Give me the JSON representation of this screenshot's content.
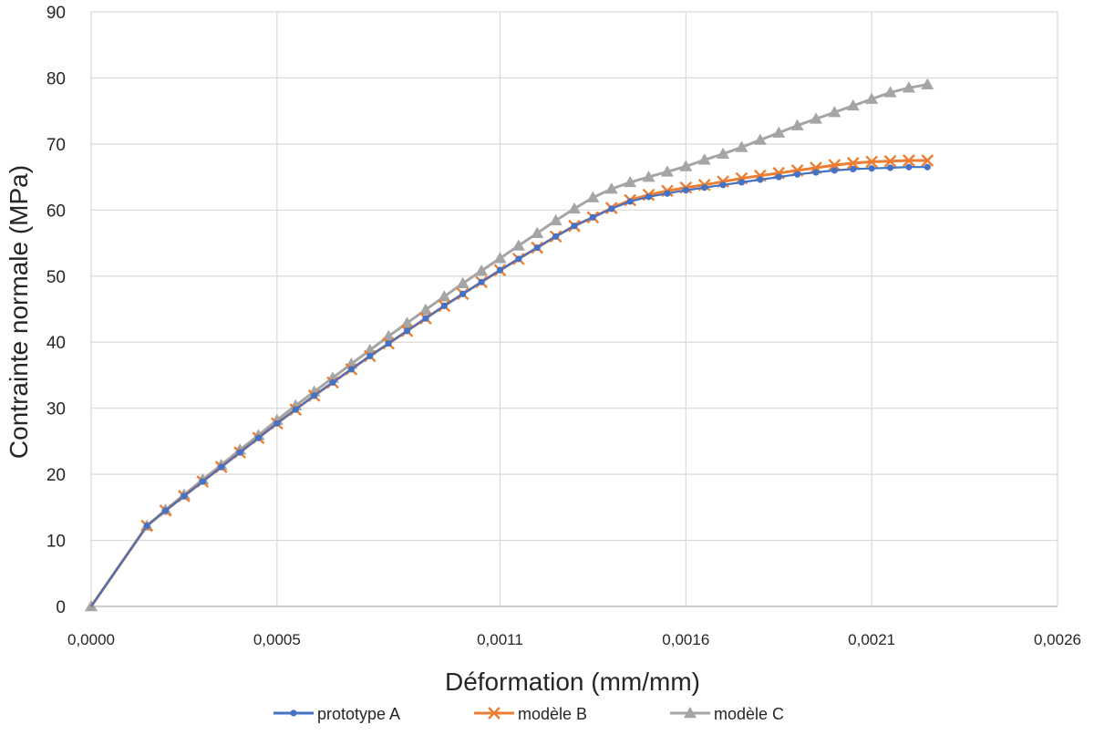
{
  "chart_data": {
    "type": "line",
    "title": "",
    "xlabel": "Déformation (mm/mm)",
    "ylabel": "Contrainte normale (MPa)",
    "xlim": [
      0,
      0.0026
    ],
    "ylim": [
      0,
      90
    ],
    "x_ticks": [
      0,
      0.0005,
      0.0011,
      0.0016,
      0.0021,
      0.0026
    ],
    "x_tick_labels": [
      "0,0000",
      "0,0005",
      "0,0011",
      "0,0016",
      "0,0021",
      "0,0026"
    ],
    "y_ticks": [
      0,
      10,
      20,
      30,
      40,
      50,
      60,
      70,
      80,
      90
    ],
    "y_tick_labels": [
      "0",
      "10",
      "20",
      "30",
      "40",
      "50",
      "60",
      "70",
      "80",
      "90"
    ],
    "grid": true,
    "legend_position": "bottom",
    "x": [
      0,
      0.00015,
      0.0002,
      0.00025,
      0.0003,
      0.00035,
      0.0004,
      0.00045,
      0.0005,
      0.00055,
      0.0006,
      0.00065,
      0.0007,
      0.00075,
      0.0008,
      0.00085,
      0.0009,
      0.00095,
      0.001,
      0.00105,
      0.0011,
      0.00115,
      0.0012,
      0.00125,
      0.0013,
      0.00135,
      0.0014,
      0.00145,
      0.0015,
      0.00155,
      0.0016,
      0.00165,
      0.0017,
      0.00175,
      0.0018,
      0.00185,
      0.0019,
      0.00195,
      0.002,
      0.00205,
      0.0021,
      0.00215,
      0.0022,
      0.00225
    ],
    "series": [
      {
        "name": "prototype A",
        "color": "#4472C4",
        "marker": "circle",
        "values": [
          0,
          12.2,
          14.5,
          16.7,
          18.9,
          21.1,
          23.3,
          25.5,
          27.7,
          29.8,
          31.9,
          33.9,
          35.9,
          37.9,
          39.8,
          41.7,
          43.6,
          45.5,
          47.3,
          49.1,
          50.9,
          52.6,
          54.3,
          56.0,
          57.6,
          58.9,
          60.2,
          61.3,
          62.0,
          62.5,
          63.0,
          63.4,
          63.8,
          64.2,
          64.6,
          65.0,
          65.4,
          65.7,
          66.0,
          66.2,
          66.3,
          66.4,
          66.5,
          66.5
        ]
      },
      {
        "name": "modèle B",
        "color": "#ED7D31",
        "marker": "x",
        "values": [
          0,
          12.2,
          14.5,
          16.7,
          18.9,
          21.1,
          23.3,
          25.5,
          27.7,
          29.8,
          31.9,
          33.9,
          35.9,
          37.9,
          39.8,
          41.7,
          43.6,
          45.5,
          47.3,
          49.1,
          50.9,
          52.6,
          54.3,
          56.0,
          57.6,
          58.9,
          60.3,
          61.5,
          62.3,
          62.9,
          63.4,
          63.8,
          64.3,
          64.8,
          65.2,
          65.6,
          66.0,
          66.4,
          66.8,
          67.1,
          67.3,
          67.4,
          67.5,
          67.5
        ]
      },
      {
        "name": "modèle C",
        "color": "#A5A5A5",
        "marker": "triangle",
        "values": [
          0,
          12.2,
          14.6,
          16.9,
          19.2,
          21.4,
          23.7,
          25.9,
          28.2,
          30.4,
          32.5,
          34.6,
          36.7,
          38.8,
          40.9,
          42.9,
          44.9,
          46.9,
          48.9,
          50.8,
          52.7,
          54.6,
          56.5,
          58.4,
          60.2,
          61.9,
          63.2,
          64.2,
          65.0,
          65.8,
          66.6,
          67.6,
          68.5,
          69.5,
          70.6,
          71.7,
          72.8,
          73.8,
          74.8,
          75.8,
          76.8,
          77.8,
          78.5,
          79.0
        ]
      }
    ]
  }
}
